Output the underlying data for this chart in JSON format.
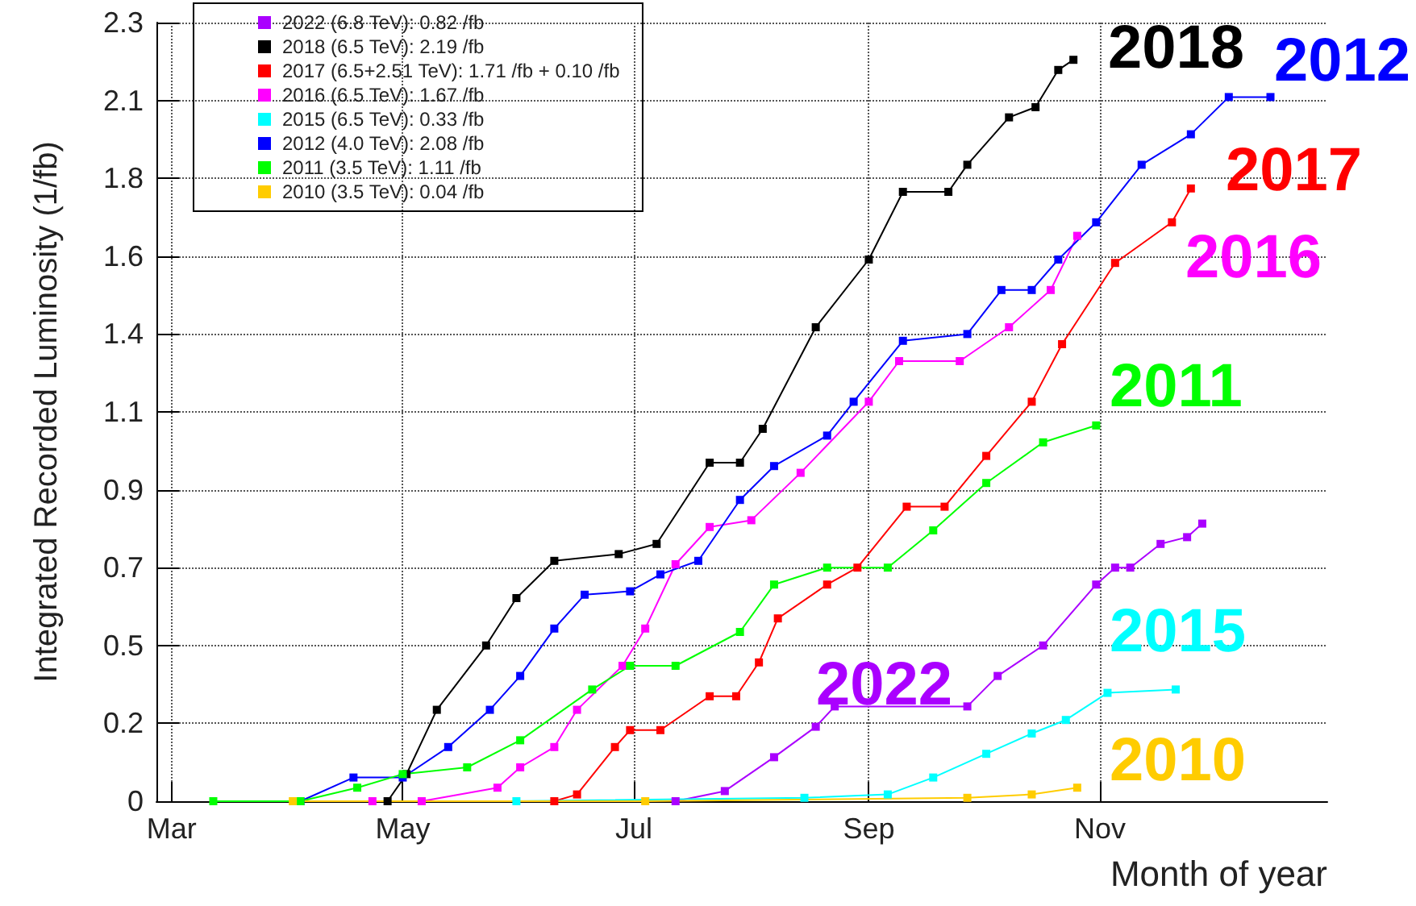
{
  "chart_data": {
    "type": "line",
    "xlabel": "Month of year",
    "ylabel": "Integrated Recorded Luminosity (1/fb)",
    "xlim": [
      "--02-25",
      "--12-31"
    ],
    "xticks": [
      {
        "value": "--03-01",
        "label": "Mar"
      },
      {
        "value": "--05-01",
        "label": "May"
      },
      {
        "value": "--07-01",
        "label": "Jul"
      },
      {
        "value": "--09-01",
        "label": "Sep"
      },
      {
        "value": "--11-01",
        "label": "Nov"
      }
    ],
    "ylim": [
      0,
      2.3
    ],
    "yticks": [
      0,
      {
        "value": 0.23,
        "label": "0.2"
      },
      {
        "value": 0.46,
        "label": "0.5"
      },
      {
        "value": 0.69,
        "label": "0.7"
      },
      {
        "value": 0.92,
        "label": "0.9"
      },
      {
        "value": 1.15,
        "label": "1.1"
      },
      {
        "value": 1.38,
        "label": "1.4"
      },
      {
        "value": 1.61,
        "label": "1.6"
      },
      {
        "value": 1.84,
        "label": "1.8"
      },
      {
        "value": 2.07,
        "label": "2.1"
      },
      2.3
    ],
    "grid": true,
    "legend": "top left",
    "marker": "square",
    "series": [
      {
        "name": "2022 (6.8 TeV): 0.82 /fb",
        "color": "#aa00ff",
        "x": [
          "--07-12",
          "--07-25",
          "--08-07",
          "--08-18",
          "--08-23",
          "--09-27",
          "--10-05",
          "--10-17",
          "--10-31",
          "--11-05",
          "--11-09",
          "--11-17",
          "--11-24",
          "--11-28"
        ],
        "values": [
          0,
          0.03,
          0.13,
          0.22,
          0.28,
          0.28,
          0.37,
          0.46,
          0.64,
          0.69,
          0.69,
          0.76,
          0.78,
          0.82
        ]
      },
      {
        "name": "2018 (6.5 TeV): 2.19 /fb",
        "color": "#000000",
        "x": [
          "--04-27",
          "--05-02",
          "--05-10",
          "--05-23",
          "--05-31",
          "--06-10",
          "--06-27",
          "--07-07",
          "--07-21",
          "--07-29",
          "--08-04",
          "--08-18",
          "--09-01",
          "--09-10",
          "--09-22",
          "--09-27",
          "--10-08",
          "--10-15",
          "--10-21",
          "--10-25"
        ],
        "values": [
          0,
          0.08,
          0.27,
          0.46,
          0.6,
          0.71,
          0.73,
          0.76,
          1.0,
          1.0,
          1.1,
          1.4,
          1.6,
          1.8,
          1.8,
          1.88,
          2.02,
          2.05,
          2.16,
          2.19
        ]
      },
      {
        "name": "2017 (6.5+2.51 TeV): 1.71 /fb + 0.10 /fb",
        "color": "#ff0000",
        "x": [
          "--06-10",
          "--06-16",
          "--06-26",
          "--06-30",
          "--07-08",
          "--07-21",
          "--07-28",
          "--08-03",
          "--08-08",
          "--08-21",
          "--08-29",
          "--09-11",
          "--09-21",
          "--10-02",
          "--10-14",
          "--10-22",
          "--11-05",
          "--11-20",
          "--11-25"
        ],
        "values": [
          0,
          0.02,
          0.16,
          0.21,
          0.21,
          0.31,
          0.31,
          0.41,
          0.54,
          0.64,
          0.69,
          0.87,
          0.87,
          1.02,
          1.18,
          1.35,
          1.59,
          1.71,
          1.81
        ]
      },
      {
        "name": "2016 (6.5 TeV): 1.67 /fb",
        "color": "#ff00ff",
        "x": [
          "--04-23",
          "--05-06",
          "--05-26",
          "--06-01",
          "--06-10",
          "--06-16",
          "--06-28",
          "--07-04",
          "--07-12",
          "--07-21",
          "--08-01",
          "--08-14",
          "--09-01",
          "--09-09",
          "--09-25",
          "--10-08",
          "--10-19",
          "--10-26"
        ],
        "values": [
          0,
          0,
          0.04,
          0.1,
          0.16,
          0.27,
          0.4,
          0.51,
          0.7,
          0.81,
          0.83,
          0.97,
          1.18,
          1.3,
          1.3,
          1.4,
          1.51,
          1.67
        ]
      },
      {
        "name": "2015 (6.5 TeV): 0.33 /fb",
        "color": "#00ffff",
        "x": [
          "--05-31",
          "--08-15",
          "--09-06",
          "--09-18",
          "--10-02",
          "--10-14",
          "--10-23",
          "--11-03",
          "--11-21"
        ],
        "values": [
          0,
          0.01,
          0.02,
          0.07,
          0.14,
          0.2,
          0.24,
          0.32,
          0.33
        ]
      },
      {
        "name": "2012 (4.0 TeV): 2.08 /fb",
        "color": "#0000ff",
        "x": [
          "--04-04",
          "--04-18",
          "--05-01",
          "--05-13",
          "--05-24",
          "--06-01",
          "--06-10",
          "--06-18",
          "--06-30",
          "--07-08",
          "--07-18",
          "--07-29",
          "--08-07",
          "--08-21",
          "--08-28",
          "--09-10",
          "--09-27",
          "--10-06",
          "--10-14",
          "--10-21",
          "--10-31",
          "--11-12",
          "--11-25",
          "--12-05",
          "--12-16"
        ],
        "values": [
          0,
          0.07,
          0.07,
          0.16,
          0.27,
          0.37,
          0.51,
          0.61,
          0.62,
          0.67,
          0.71,
          0.89,
          0.99,
          1.08,
          1.18,
          1.36,
          1.38,
          1.51,
          1.51,
          1.6,
          1.71,
          1.88,
          1.97,
          2.08,
          2.08
        ]
      },
      {
        "name": "2011 (3.5 TeV): 1.11 /fb",
        "color": "#00ff00",
        "x": [
          "--03-12",
          "--04-04",
          "--04-19",
          "--05-01",
          "--05-18",
          "--06-01",
          "--06-20",
          "--06-30",
          "--07-12",
          "--07-29",
          "--08-07",
          "--08-21",
          "--09-06",
          "--09-18",
          "--10-02",
          "--10-17",
          "--10-31"
        ],
        "values": [
          0,
          0,
          0.04,
          0.08,
          0.1,
          0.18,
          0.33,
          0.4,
          0.4,
          0.5,
          0.64,
          0.69,
          0.69,
          0.8,
          0.94,
          1.06,
          1.11
        ]
      },
      {
        "name": "2010 (3.5 TeV): 0.04 /fb",
        "color": "#ffcc00",
        "x": [
          "--04-02",
          "--07-04",
          "--09-27",
          "--10-14",
          "--10-26"
        ],
        "values": [
          0,
          0,
          0.01,
          0.02,
          0.04
        ]
      }
    ],
    "annotations": [
      "2022",
      "2018",
      "2017",
      "2016",
      "2015",
      "2012",
      "2011",
      "2010"
    ]
  }
}
